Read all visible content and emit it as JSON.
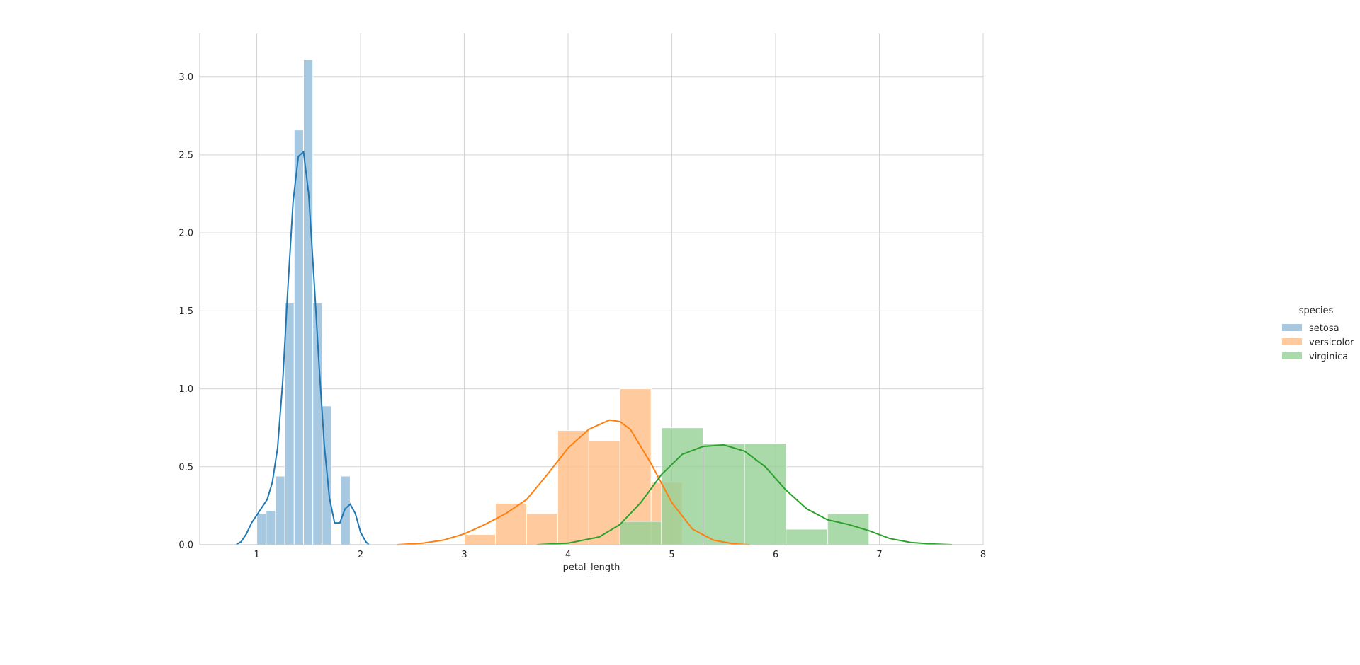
{
  "chart_data": {
    "type": "histogram",
    "title": "",
    "xlabel": "petal_length",
    "ylabel": "",
    "xlim": [
      0.45,
      8.0
    ],
    "ylim": [
      0,
      3.28
    ],
    "xticks": [
      1,
      2,
      3,
      4,
      5,
      6,
      7,
      8
    ],
    "yticks": [
      0.0,
      0.5,
      1.0,
      1.5,
      2.0,
      2.5,
      3.0
    ],
    "xtick_labels": [
      "1",
      "2",
      "3",
      "4",
      "5",
      "6",
      "7",
      "8"
    ],
    "ytick_labels": [
      "0.0",
      "0.5",
      "1.0",
      "1.5",
      "2.0",
      "2.5",
      "3.0"
    ],
    "grid": true,
    "legend": {
      "title": "species",
      "position": "right"
    },
    "series": [
      {
        "name": "setosa",
        "color": "#1f77b4",
        "bar_color": "#a6c8e1",
        "bar_opacity": 1,
        "bins": [
          [
            1.0,
            1.09,
            0.2
          ],
          [
            1.09,
            1.18,
            0.22
          ],
          [
            1.18,
            1.27,
            0.44
          ],
          [
            1.27,
            1.36,
            1.55
          ],
          [
            1.36,
            1.45,
            2.66
          ],
          [
            1.45,
            1.54,
            3.11
          ],
          [
            1.54,
            1.63,
            1.55
          ],
          [
            1.63,
            1.72,
            0.89
          ],
          [
            1.72,
            1.81,
            0.0
          ],
          [
            1.81,
            1.9,
            0.44
          ]
        ],
        "kde": [
          [
            0.8,
            0.0
          ],
          [
            0.85,
            0.02
          ],
          [
            0.9,
            0.07
          ],
          [
            0.95,
            0.14
          ],
          [
            1.0,
            0.19
          ],
          [
            1.05,
            0.24
          ],
          [
            1.1,
            0.29
          ],
          [
            1.15,
            0.4
          ],
          [
            1.2,
            0.62
          ],
          [
            1.25,
            1.05
          ],
          [
            1.3,
            1.65
          ],
          [
            1.35,
            2.2
          ],
          [
            1.4,
            2.49
          ],
          [
            1.45,
            2.52
          ],
          [
            1.5,
            2.25
          ],
          [
            1.55,
            1.72
          ],
          [
            1.6,
            1.15
          ],
          [
            1.65,
            0.64
          ],
          [
            1.7,
            0.3
          ],
          [
            1.75,
            0.14
          ],
          [
            1.8,
            0.14
          ],
          [
            1.85,
            0.23
          ],
          [
            1.9,
            0.26
          ],
          [
            1.95,
            0.2
          ],
          [
            2.0,
            0.08
          ],
          [
            2.05,
            0.02
          ],
          [
            2.08,
            0.0
          ]
        ]
      },
      {
        "name": "versicolor",
        "color": "#ff7f0e",
        "bar_color": "#ffbe86",
        "bar_opacity": 0.8,
        "bins": [
          [
            3.0,
            3.3,
            0.066
          ],
          [
            3.3,
            3.6,
            0.266
          ],
          [
            3.6,
            3.9,
            0.2
          ],
          [
            3.9,
            4.2,
            0.733
          ],
          [
            4.2,
            4.5,
            0.666
          ],
          [
            4.5,
            4.8,
            1.0
          ],
          [
            4.8,
            5.1,
            0.4
          ]
        ],
        "kde": [
          [
            2.35,
            0.0
          ],
          [
            2.6,
            0.01
          ],
          [
            2.8,
            0.03
          ],
          [
            3.0,
            0.07
          ],
          [
            3.2,
            0.13
          ],
          [
            3.4,
            0.2
          ],
          [
            3.6,
            0.29
          ],
          [
            3.8,
            0.45
          ],
          [
            4.0,
            0.62
          ],
          [
            4.2,
            0.74
          ],
          [
            4.4,
            0.8
          ],
          [
            4.5,
            0.79
          ],
          [
            4.6,
            0.74
          ],
          [
            4.8,
            0.52
          ],
          [
            5.0,
            0.27
          ],
          [
            5.2,
            0.1
          ],
          [
            5.4,
            0.03
          ],
          [
            5.6,
            0.005
          ],
          [
            5.75,
            0.0
          ]
        ]
      },
      {
        "name": "virginica",
        "color": "#2ca02c",
        "bar_color": "#95cf95",
        "bar_opacity": 0.8,
        "bins": [
          [
            4.5,
            4.9,
            0.15
          ],
          [
            4.9,
            5.3,
            0.75
          ],
          [
            5.3,
            5.7,
            0.65
          ],
          [
            5.7,
            6.1,
            0.65
          ],
          [
            6.1,
            6.5,
            0.1
          ],
          [
            6.5,
            6.9,
            0.2
          ]
        ],
        "kde": [
          [
            3.7,
            0.0
          ],
          [
            4.0,
            0.01
          ],
          [
            4.3,
            0.05
          ],
          [
            4.5,
            0.13
          ],
          [
            4.7,
            0.27
          ],
          [
            4.9,
            0.45
          ],
          [
            5.1,
            0.58
          ],
          [
            5.3,
            0.63
          ],
          [
            5.5,
            0.64
          ],
          [
            5.7,
            0.6
          ],
          [
            5.9,
            0.5
          ],
          [
            6.1,
            0.35
          ],
          [
            6.3,
            0.23
          ],
          [
            6.5,
            0.16
          ],
          [
            6.7,
            0.13
          ],
          [
            6.9,
            0.09
          ],
          [
            7.1,
            0.04
          ],
          [
            7.3,
            0.015
          ],
          [
            7.5,
            0.005
          ],
          [
            7.7,
            0.0
          ]
        ]
      }
    ]
  }
}
